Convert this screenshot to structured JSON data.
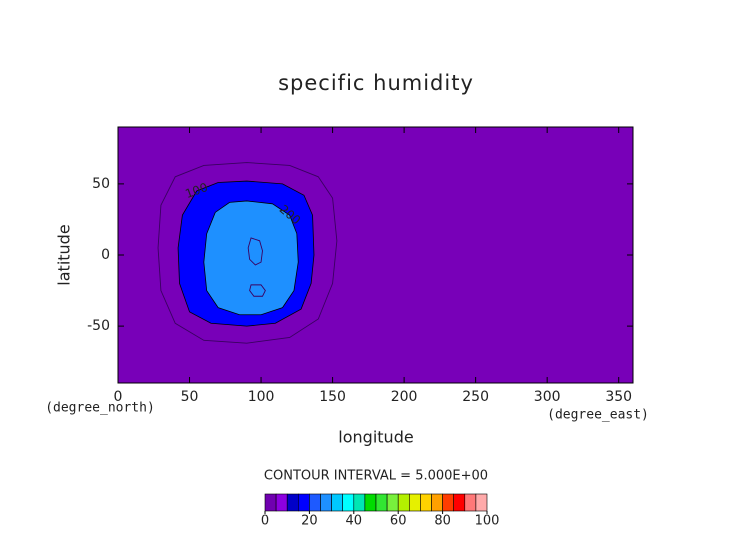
{
  "chart_data": {
    "type": "contour",
    "title": "specific humidity",
    "xlabel": "longitude",
    "ylabel": "latitude",
    "xunit": "(degree_east)",
    "yunit": "(degree_north)",
    "xlim": [
      0,
      360
    ],
    "ylim": [
      -90,
      90
    ],
    "xticks": [
      0,
      50,
      100,
      150,
      200,
      250,
      300,
      350
    ],
    "yticks": [
      -50,
      0,
      50
    ],
    "background": "#7800b8",
    "contours": [
      {
        "lon": [
          90,
          120,
          140,
          150,
          153,
          150,
          140,
          120,
          90,
          60,
          40,
          30,
          28,
          30,
          40,
          60
        ],
        "lat": [
          65,
          63,
          55,
          40,
          10,
          -20,
          -45,
          -58,
          -62,
          -60,
          -48,
          -25,
          5,
          35,
          55,
          63
        ]
      },
      {
        "label": 100,
        "color": "#0000ff",
        "lon": [
          90,
          115,
          130,
          136,
          137,
          135,
          128,
          110,
          90,
          65,
          50,
          43,
          42,
          45,
          55,
          70
        ],
        "lat": [
          52,
          50,
          42,
          28,
          0,
          -20,
          -38,
          -48,
          -50,
          -48,
          -40,
          -20,
          5,
          28,
          45,
          51
        ]
      },
      {
        "label": 200,
        "color": "#1e90ff",
        "lon": [
          90,
          108,
          120,
          125,
          126,
          123,
          115,
          100,
          85,
          70,
          62,
          60,
          62,
          68,
          78
        ],
        "lat": [
          38,
          36,
          28,
          15,
          -5,
          -25,
          -37,
          -42,
          -42,
          -37,
          -25,
          -5,
          15,
          30,
          37
        ]
      },
      {
        "lon": [
          93,
          99,
          101,
          100,
          96,
          92,
          91
        ],
        "lat": [
          12,
          10,
          3,
          -5,
          -7,
          -3,
          5
        ]
      },
      {
        "lon": [
          93,
          100,
          103,
          101,
          95,
          92
        ],
        "lat": [
          -21,
          -21,
          -25,
          -29,
          -29,
          -25
        ]
      }
    ],
    "contour_interval_text": "CONTOUR INTERVAL = 5.000E+00",
    "colorbar": {
      "lim": [
        0,
        100
      ],
      "ticks": [
        0,
        20,
        40,
        60,
        80,
        100
      ],
      "colors": [
        "#7000b0",
        "#8c00e0",
        "#0000c8",
        "#0000ff",
        "#1e5aff",
        "#1e90ff",
        "#00c8ff",
        "#00ffff",
        "#00e6b4",
        "#00dc00",
        "#32e632",
        "#78f03c",
        "#b4f000",
        "#e6f000",
        "#ffd200",
        "#ffa000",
        "#ff3c00",
        "#ff0000",
        "#ff7878",
        "#ffaaaa"
      ]
    }
  }
}
